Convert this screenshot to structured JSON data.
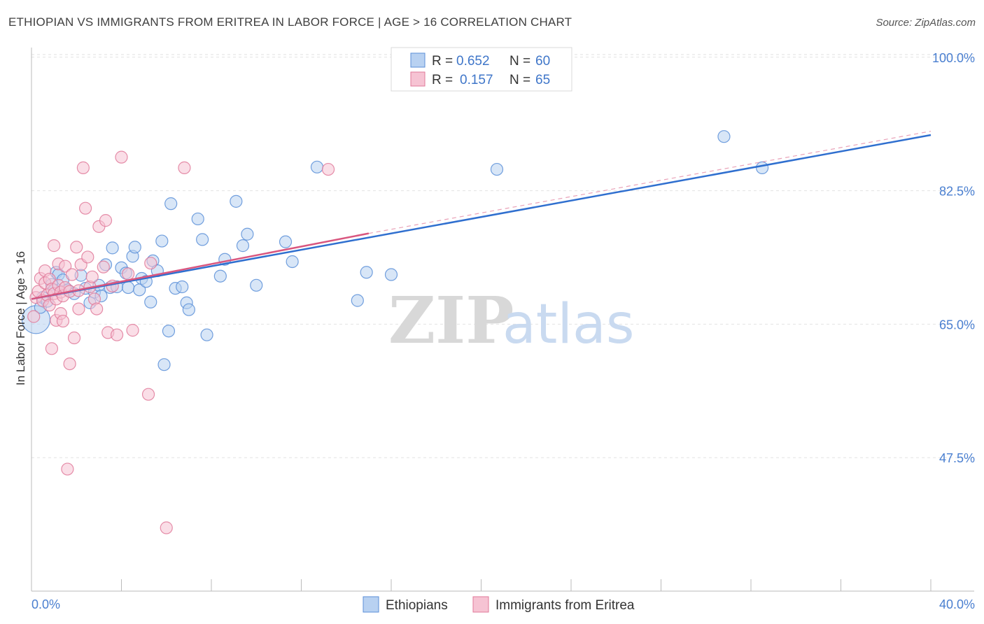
{
  "title": "ETHIOPIAN VS IMMIGRANTS FROM ERITREA IN LABOR FORCE | AGE > 16 CORRELATION CHART",
  "source": "Source: ZipAtlas.com",
  "watermark": {
    "zip": "ZIP",
    "atlas": "atlas"
  },
  "chart_data": {
    "type": "scatter",
    "title": "ETHIOPIAN VS IMMIGRANTS FROM ERITREA IN LABOR FORCE | AGE > 16 CORRELATION CHART",
    "xlabel": "",
    "ylabel": "In Labor Force | Age > 16",
    "xlim": [
      0,
      40
    ],
    "ylim": [
      30,
      102
    ],
    "x_tick_labels": [
      "0.0%",
      "40.0%"
    ],
    "y_ticks": [
      100,
      82.5,
      65,
      47.5
    ],
    "y_tick_labels": [
      "100.0%",
      "82.5%",
      "65.0%",
      "47.5%"
    ],
    "grid": true,
    "legend": [
      {
        "name": "Ethiopians",
        "r_label": "R =",
        "r": "0.652",
        "n_label": "N =",
        "n": "60",
        "color": "#5b8fd8",
        "fill": "#b8d1f1"
      },
      {
        "name": "Immigrants from Eritrea",
        "r_label": "R =",
        "r": "0.157",
        "n_label": "N =",
        "n": "65",
        "color": "#e07a9a",
        "fill": "#f6c3d3"
      }
    ],
    "series": [
      {
        "name": "Ethiopians",
        "color": "#5b8fd8",
        "fill": "#b8d1f1",
        "trend": {
          "x": [
            0,
            40
          ],
          "y": [
            68.3,
            89.8
          ]
        },
        "points": [
          {
            "x": 0.2,
            "y": 65.6,
            "big": true
          },
          {
            "x": 0.4,
            "y": 67.2
          },
          {
            "x": 0.5,
            "y": 68.5
          },
          {
            "x": 0.7,
            "y": 68.0
          },
          {
            "x": 0.9,
            "y": 70.2
          },
          {
            "x": 1.0,
            "y": 69.5
          },
          {
            "x": 1.1,
            "y": 71.8
          },
          {
            "x": 1.2,
            "y": 71.5
          },
          {
            "x": 1.4,
            "y": 70.8
          },
          {
            "x": 1.6,
            "y": 69.5
          },
          {
            "x": 1.9,
            "y": 69.0
          },
          {
            "x": 2.2,
            "y": 71.4
          },
          {
            "x": 2.4,
            "y": 69.7
          },
          {
            "x": 2.6,
            "y": 67.8
          },
          {
            "x": 2.8,
            "y": 69.2
          },
          {
            "x": 3.0,
            "y": 70.1
          },
          {
            "x": 3.1,
            "y": 68.7
          },
          {
            "x": 3.3,
            "y": 72.8
          },
          {
            "x": 3.5,
            "y": 69.8
          },
          {
            "x": 3.6,
            "y": 75.0
          },
          {
            "x": 3.8,
            "y": 69.9
          },
          {
            "x": 4.0,
            "y": 72.4
          },
          {
            "x": 4.2,
            "y": 71.7
          },
          {
            "x": 4.3,
            "y": 69.8
          },
          {
            "x": 4.5,
            "y": 73.9
          },
          {
            "x": 4.6,
            "y": 75.1
          },
          {
            "x": 4.8,
            "y": 69.5
          },
          {
            "x": 4.9,
            "y": 71.0
          },
          {
            "x": 5.1,
            "y": 70.6
          },
          {
            "x": 5.3,
            "y": 67.9
          },
          {
            "x": 5.4,
            "y": 73.3
          },
          {
            "x": 5.6,
            "y": 72.0
          },
          {
            "x": 5.8,
            "y": 75.9
          },
          {
            "x": 5.9,
            "y": 59.7
          },
          {
            "x": 6.1,
            "y": 64.1
          },
          {
            "x": 6.2,
            "y": 80.8
          },
          {
            "x": 6.4,
            "y": 69.7
          },
          {
            "x": 6.7,
            "y": 69.9
          },
          {
            "x": 6.9,
            "y": 67.8
          },
          {
            "x": 7.0,
            "y": 66.9
          },
          {
            "x": 7.4,
            "y": 78.8
          },
          {
            "x": 7.6,
            "y": 76.1
          },
          {
            "x": 7.8,
            "y": 63.6
          },
          {
            "x": 8.4,
            "y": 71.3
          },
          {
            "x": 8.6,
            "y": 73.5
          },
          {
            "x": 9.1,
            "y": 81.1
          },
          {
            "x": 9.4,
            "y": 75.3
          },
          {
            "x": 9.6,
            "y": 76.8
          },
          {
            "x": 10.0,
            "y": 70.1
          },
          {
            "x": 11.3,
            "y": 75.8
          },
          {
            "x": 11.6,
            "y": 73.2
          },
          {
            "x": 12.7,
            "y": 85.6
          },
          {
            "x": 14.5,
            "y": 68.1
          },
          {
            "x": 14.9,
            "y": 71.8
          },
          {
            "x": 16.0,
            "y": 71.5
          },
          {
            "x": 20.7,
            "y": 85.3
          },
          {
            "x": 30.8,
            "y": 89.6
          },
          {
            "x": 32.5,
            "y": 85.5
          }
        ]
      },
      {
        "name": "Immigrants from Eritrea",
        "color": "#e07a9a",
        "fill": "#f6c3d3",
        "trend": {
          "x": [
            0,
            15
          ],
          "y": [
            68.3,
            76.9
          ]
        },
        "trend_ext": {
          "x": [
            15,
            40
          ],
          "y": [
            76.9,
            90.3
          ]
        },
        "points": [
          {
            "x": 0.1,
            "y": 66.0
          },
          {
            "x": 0.2,
            "y": 68.5
          },
          {
            "x": 0.3,
            "y": 69.3
          },
          {
            "x": 0.4,
            "y": 71.0
          },
          {
            "x": 0.5,
            "y": 68.1
          },
          {
            "x": 0.6,
            "y": 70.4
          },
          {
            "x": 0.6,
            "y": 72.0
          },
          {
            "x": 0.7,
            "y": 68.8
          },
          {
            "x": 0.8,
            "y": 70.9
          },
          {
            "x": 0.8,
            "y": 67.5
          },
          {
            "x": 0.9,
            "y": 69.6
          },
          {
            "x": 0.9,
            "y": 61.8
          },
          {
            "x": 1.0,
            "y": 75.3
          },
          {
            "x": 1.0,
            "y": 69.0
          },
          {
            "x": 1.1,
            "y": 68.3
          },
          {
            "x": 1.1,
            "y": 65.5
          },
          {
            "x": 1.2,
            "y": 72.9
          },
          {
            "x": 1.2,
            "y": 70.1
          },
          {
            "x": 1.3,
            "y": 69.2
          },
          {
            "x": 1.3,
            "y": 66.4
          },
          {
            "x": 1.4,
            "y": 68.7
          },
          {
            "x": 1.4,
            "y": 65.4
          },
          {
            "x": 1.5,
            "y": 72.6
          },
          {
            "x": 1.5,
            "y": 69.8
          },
          {
            "x": 1.6,
            "y": 46.0
          },
          {
            "x": 1.7,
            "y": 59.8
          },
          {
            "x": 1.7,
            "y": 69.3
          },
          {
            "x": 1.8,
            "y": 71.5
          },
          {
            "x": 1.9,
            "y": 63.2
          },
          {
            "x": 2.0,
            "y": 75.1
          },
          {
            "x": 2.1,
            "y": 69.4
          },
          {
            "x": 2.1,
            "y": 67.0
          },
          {
            "x": 2.2,
            "y": 72.8
          },
          {
            "x": 2.3,
            "y": 85.5
          },
          {
            "x": 2.4,
            "y": 80.2
          },
          {
            "x": 2.5,
            "y": 73.8
          },
          {
            "x": 2.6,
            "y": 69.9
          },
          {
            "x": 2.7,
            "y": 71.2
          },
          {
            "x": 2.8,
            "y": 68.3
          },
          {
            "x": 2.9,
            "y": 67.0
          },
          {
            "x": 3.0,
            "y": 77.8
          },
          {
            "x": 3.2,
            "y": 72.5
          },
          {
            "x": 3.3,
            "y": 78.6
          },
          {
            "x": 3.4,
            "y": 63.9
          },
          {
            "x": 3.6,
            "y": 70.0
          },
          {
            "x": 3.8,
            "y": 63.6
          },
          {
            "x": 4.0,
            "y": 86.9
          },
          {
            "x": 4.3,
            "y": 71.6
          },
          {
            "x": 4.5,
            "y": 64.2
          },
          {
            "x": 5.2,
            "y": 55.8
          },
          {
            "x": 5.3,
            "y": 73.0
          },
          {
            "x": 6.0,
            "y": 38.3
          },
          {
            "x": 6.8,
            "y": 85.5
          },
          {
            "x": 13.2,
            "y": 85.3
          }
        ]
      }
    ]
  },
  "bottom_legend": [
    "Ethiopians",
    "Immigrants from Eritrea"
  ]
}
